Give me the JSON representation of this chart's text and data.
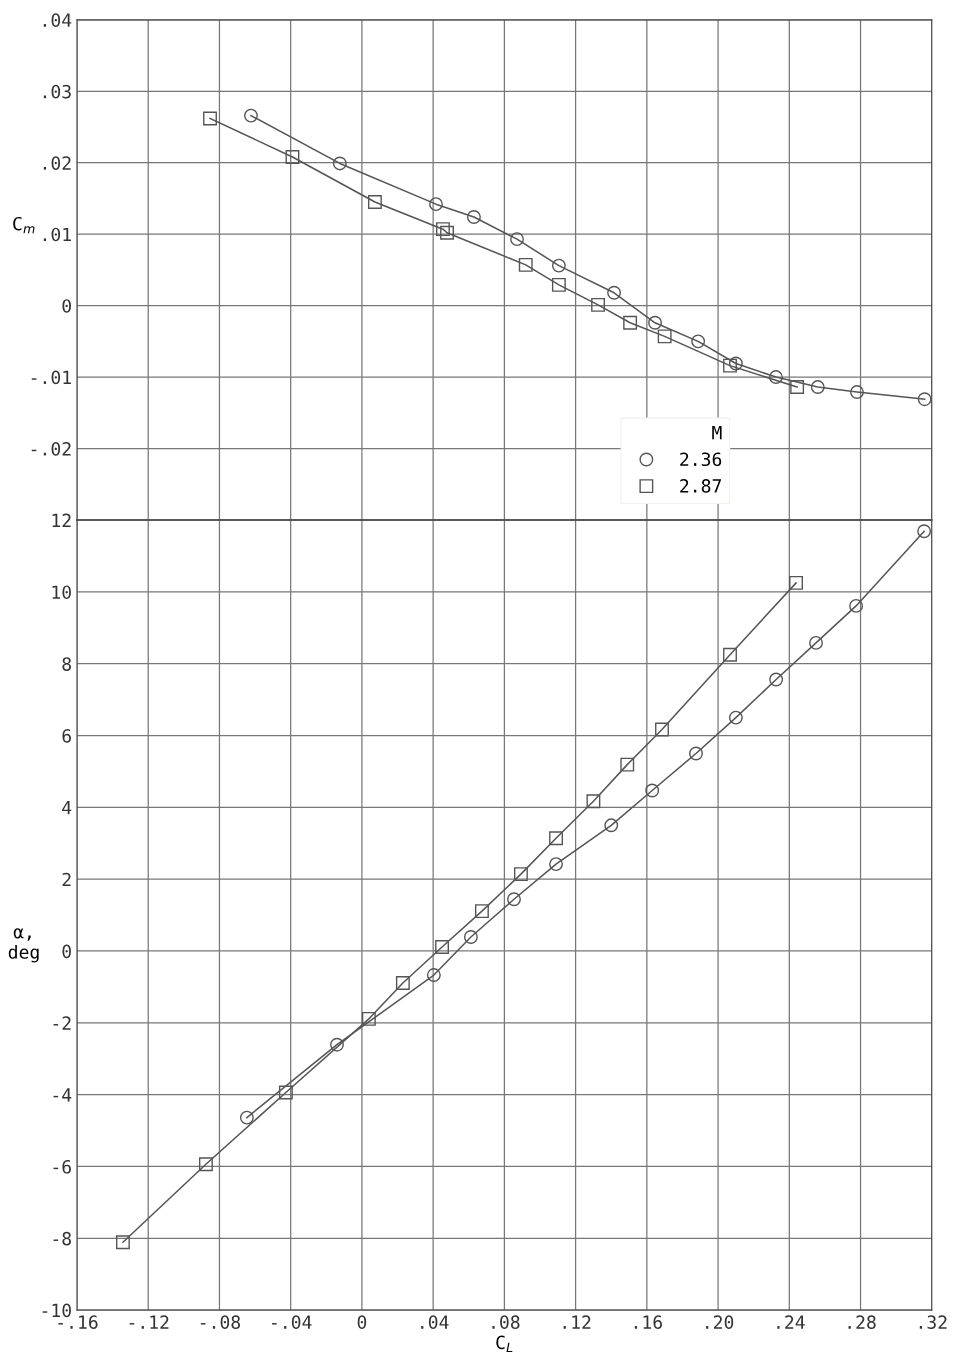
{
  "chart_data": [
    {
      "type": "line",
      "ylabel": "C$_{m}$",
      "legend_title": "M",
      "legend": "bottom",
      "grid": true,
      "line_style": "solid",
      "tick_labels": "y",
      "xlim": [
        -0.16,
        0.32
      ],
      "xticks": [
        -0.16,
        -0.12,
        -0.08,
        -0.04,
        0,
        0.04,
        0.08,
        0.12,
        0.16,
        0.2,
        0.24,
        0.28,
        0.32
      ],
      "ylim": [
        -0.03,
        0.04
      ],
      "yticks": [
        {
          "value": -0.03,
          "label": null
        },
        {
          "value": -0.02,
          "label": "-.02"
        },
        {
          "value": -0.01,
          "label": "-.01"
        },
        0,
        {
          "value": 0.01,
          "label": ".01"
        },
        {
          "value": 0.02,
          "label": ".02"
        },
        {
          "value": 0.03,
          "label": ".03"
        },
        {
          "value": 0.04,
          "label": ".04"
        }
      ],
      "series": [
        {
          "name": "2.36",
          "color": "#555555",
          "marker": "circle",
          "x": [
            -0.0623,
            -0.0124,
            0.0416,
            0.0629,
            0.0871,
            0.1106,
            0.1416,
            0.1646,
            0.1888,
            0.21,
            0.2325,
            0.256,
            0.278,
            0.316
          ],
          "values": [
            0.0266,
            0.0199,
            0.0142,
            0.0124,
            0.0093,
            0.0056,
            0.0018,
            -0.0024,
            -0.005,
            -0.0081,
            -0.01,
            -0.0114,
            -0.0121,
            -0.0131
          ]
        },
        {
          "name": "2.87",
          "color": "#555555",
          "marker": "square",
          "x": [
            -0.0853,
            -0.039,
            0.0073,
            0.0455,
            0.0478,
            0.092,
            0.1106,
            0.1326,
            0.1506,
            0.17,
            0.2067,
            0.2444
          ],
          "values": [
            0.0262,
            0.0208,
            0.0145,
            0.0107,
            0.0102,
            0.0057,
            0.0029,
            0.0001,
            -0.0024,
            -0.0043,
            -0.0084,
            -0.0114
          ]
        }
      ]
    },
    {
      "type": "line",
      "xlabel": "C$_{L}$",
      "ylabel": "α,\ndeg",
      "grid": true,
      "line_style": "solid",
      "xlim": [
        -0.16,
        0.32
      ],
      "xticks": [
        {
          "value": -0.16,
          "label": "-.16"
        },
        {
          "value": -0.12,
          "label": "-.12"
        },
        {
          "value": -0.08,
          "label": "-.08"
        },
        {
          "value": -0.04,
          "label": "-.04"
        },
        0,
        {
          "value": 0.04,
          "label": ".04"
        },
        {
          "value": 0.08,
          "label": ".08"
        },
        {
          "value": 0.12,
          "label": ".12"
        },
        {
          "value": 0.16,
          "label": ".16"
        },
        {
          "value": 0.2,
          "label": ".20"
        },
        {
          "value": 0.24,
          "label": ".24"
        },
        {
          "value": 0.28,
          "label": ".28"
        },
        {
          "value": 0.32,
          "label": ".32"
        }
      ],
      "ylim": [
        -10,
        12
      ],
      "yticks": [
        -10,
        -8,
        -6,
        -4,
        -2,
        0,
        2,
        4,
        6,
        8,
        10,
        12
      ],
      "series": [
        {
          "color": "#555555",
          "marker": "circle",
          "x": [
            -0.0646,
            -0.014,
            0.0404,
            0.0612,
            0.0854,
            0.109,
            0.14,
            0.163,
            0.1876,
            0.21,
            0.2326,
            0.255,
            0.2775,
            0.3157
          ],
          "values": [
            -4.64,
            -2.61,
            -0.67,
            0.39,
            1.44,
            2.42,
            3.5,
            4.47,
            5.5,
            6.5,
            7.56,
            8.58,
            9.61,
            11.69
          ]
        },
        {
          "color": "#555555",
          "marker": "square",
          "x": [
            -0.1342,
            -0.0876,
            -0.0427,
            0.0039,
            0.023,
            0.045,
            0.0674,
            0.0893,
            0.109,
            0.13,
            0.149,
            0.1685,
            0.2067,
            0.2438
          ],
          "values": [
            -8.11,
            -5.94,
            -3.94,
            -1.89,
            -0.89,
            0.11,
            1.11,
            2.14,
            3.14,
            4.17,
            5.19,
            6.17,
            8.25,
            10.25
          ]
        }
      ]
    }
  ]
}
